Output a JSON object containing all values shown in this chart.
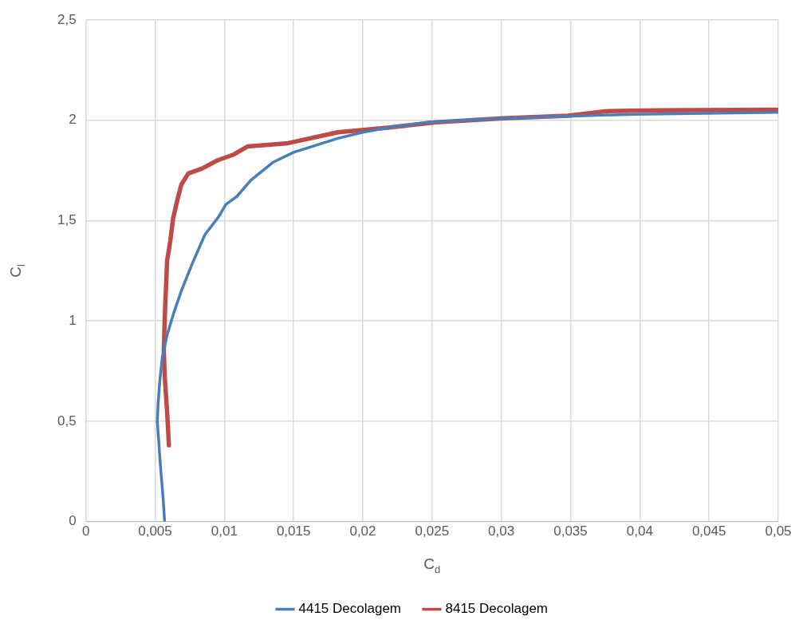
{
  "chart_data": {
    "type": "line",
    "xlabel": "C$_{d}$",
    "ylabel": "C$_{l}$",
    "xlim": [
      0,
      0.05
    ],
    "xticks": [
      0,
      {
        "value": 0.005,
        "label": "0,005"
      },
      {
        "value": 0.01,
        "label": "0,01"
      },
      {
        "value": 0.015,
        "label": "0,015"
      },
      {
        "value": 0.02,
        "label": "0,02"
      },
      {
        "value": 0.025,
        "label": "0,025"
      },
      {
        "value": 0.03,
        "label": "0,03"
      },
      {
        "value": 0.035,
        "label": "0,035"
      },
      {
        "value": 0.04,
        "label": "0,04"
      },
      {
        "value": 0.045,
        "label": "0,045"
      },
      {
        "value": 0.05,
        "label": "0,05"
      }
    ],
    "ylim": [
      0,
      2.5
    ],
    "yticks": [
      0,
      {
        "value": 0.5,
        "label": "0,5"
      },
      1,
      {
        "value": 1.5,
        "label": "1,5"
      },
      2,
      {
        "value": 2.5,
        "label": "2,5"
      }
    ],
    "grid": true,
    "legend": "bottom",
    "marker": "none",
    "line_style": "solid",
    "series": [
      {
        "name": "4415 Decolagem",
        "color": "#4a7ebb",
        "x": [
          0.00569,
          0.00558,
          0.0054,
          0.00516,
          0.00522,
          0.00534,
          0.00552,
          0.00587,
          0.00635,
          0.0069,
          0.00765,
          0.0086,
          0.0096,
          0.0101,
          0.0109,
          0.0119,
          0.0135,
          0.015,
          0.0182,
          0.02,
          0.0218,
          0.0247,
          0.0301,
          0.0348,
          0.0396,
          0.05
        ],
        "values": [
          0,
          0.116,
          0.266,
          0.5,
          0.59,
          0.7,
          0.82,
          0.93,
          1.04,
          1.15,
          1.28,
          1.43,
          1.52,
          1.58,
          1.62,
          1.7,
          1.79,
          1.84,
          1.91,
          1.94,
          1.963,
          1.99,
          2.01,
          2.02,
          2.03,
          2.04
        ]
      },
      {
        "name": "8415 Decolagem",
        "color": "#be4b48",
        "x": [
          0.006,
          0.00587,
          0.0057,
          0.00563,
          0.0057,
          0.00587,
          0.0061,
          0.0063,
          0.0066,
          0.0069,
          0.0074,
          0.0084,
          0.0095,
          0.0107,
          0.0117,
          0.0146,
          0.0182,
          0.0218,
          0.0253,
          0.0301,
          0.0348,
          0.0375,
          0.0413,
          0.05
        ],
        "values": [
          0.38,
          0.545,
          0.72,
          0.85,
          1.02,
          1.3,
          1.4,
          1.51,
          1.6,
          1.68,
          1.735,
          1.76,
          1.8,
          1.83,
          1.87,
          1.886,
          1.94,
          1.963,
          1.99,
          2.01,
          2.023,
          2.045,
          2.05,
          2.053
        ]
      }
    ]
  }
}
